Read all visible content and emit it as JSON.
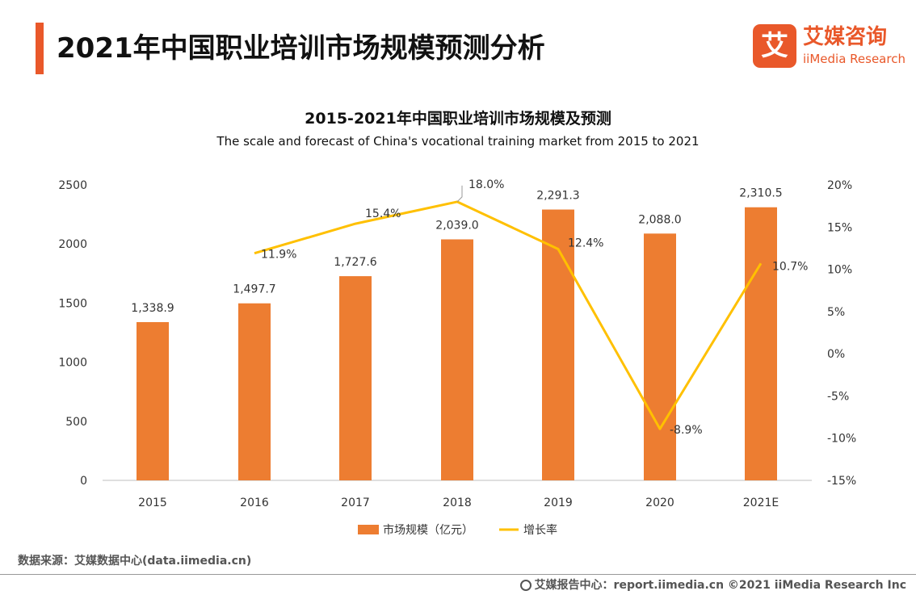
{
  "header": {
    "title": "2021年中国职业培训市场规模预测分析"
  },
  "logo": {
    "mark": "艾",
    "name_cn": "艾媒咨询",
    "name_en": "iiMedia Research"
  },
  "colors": {
    "accent": "#e9582a",
    "bar": "#ed7d31",
    "line": "#ffc000"
  },
  "chart_data": {
    "type": "bar",
    "title": "2015-2021年中国职业培训市场规模及预测",
    "subtitle": "The scale and forecast of China's vocational training market from 2015 to 2021",
    "categories": [
      "2015",
      "2016",
      "2017",
      "2018",
      "2019",
      "2020",
      "2021E"
    ],
    "series": [
      {
        "name": "市场规模（亿元）",
        "type": "bar",
        "axis": "left",
        "values": [
          1338.9,
          1497.7,
          1727.6,
          2039.0,
          2291.3,
          2088.0,
          2310.5
        ],
        "labels": [
          "1,338.9",
          "1,497.7",
          "1,727.6",
          "2,039.0",
          "2,291.3",
          "2,088.0",
          "2,310.5"
        ]
      },
      {
        "name": "增长率",
        "type": "line",
        "axis": "right",
        "values": [
          null,
          11.9,
          15.4,
          18.0,
          12.4,
          -8.9,
          10.7
        ],
        "labels": [
          "",
          "11.9%",
          "15.4%",
          "18.0%",
          "12.4%",
          "-8.9%",
          "10.7%"
        ]
      }
    ],
    "y_left": {
      "ylim": [
        0,
        2500
      ],
      "ticks": [
        "0",
        "500",
        "1000",
        "1500",
        "2000",
        "2500"
      ]
    },
    "y_right": {
      "ylim": [
        -15,
        20
      ],
      "ticks": [
        "-15%",
        "-10%",
        "-5%",
        "0%",
        "5%",
        "10%",
        "15%",
        "20%"
      ]
    },
    "grid": false,
    "legend_position": "bottom"
  },
  "source": {
    "text": "数据来源：艾媒数据中心(data.iimedia.cn)"
  },
  "footer": {
    "text": "艾媒报告中心：report.iimedia.cn  ©2021  iiMedia Research  Inc"
  }
}
